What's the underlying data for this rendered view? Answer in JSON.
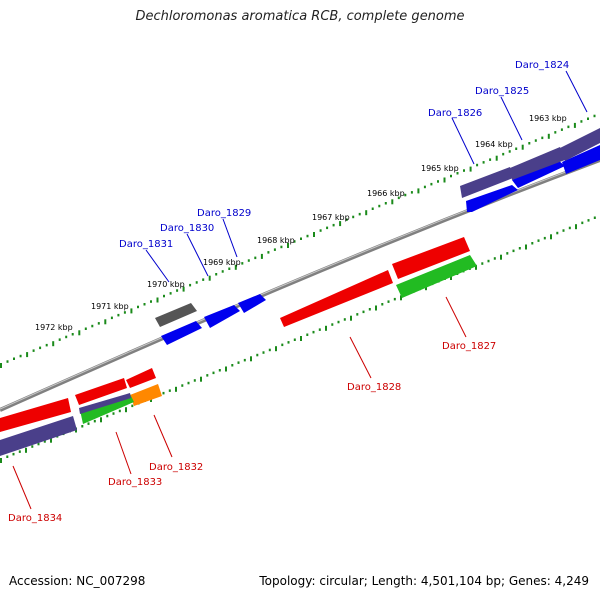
{
  "title": "Dechloromonas aromatica RCB, complete genome",
  "footer": {
    "accession_label": "Accession: NC_007298",
    "summary": "Topology: circular; Length: 4,501,104 bp; Genes: 4,249"
  },
  "colors": {
    "forward_label": "#0000cc",
    "reverse_label": "#cc0000",
    "blue_gene": "#0000ee",
    "red_gene": "#ee0000",
    "purple_gene": "#4a3f8a",
    "green_gene": "#22bb22",
    "orange_gene": "#ff8800",
    "gray_gene": "#555555",
    "tick_green": "#1a8a1a",
    "backbone": "#808080"
  },
  "scale_labels": [
    "1963 kbp",
    "1964 kbp",
    "1965 kbp",
    "1966 kbp",
    "1967 kbp",
    "1968 kbp",
    "1969 kbp",
    "1970 kbp",
    "1971 kbp",
    "1972 kbp"
  ],
  "forward_labels": [
    "Daro_1824",
    "Daro_1825",
    "Daro_1826",
    "Daro_1829",
    "Daro_1830",
    "Daro_1831"
  ],
  "reverse_labels": [
    "Daro_1827",
    "Daro_1828",
    "Daro_1832",
    "Daro_1833",
    "Daro_1834"
  ]
}
